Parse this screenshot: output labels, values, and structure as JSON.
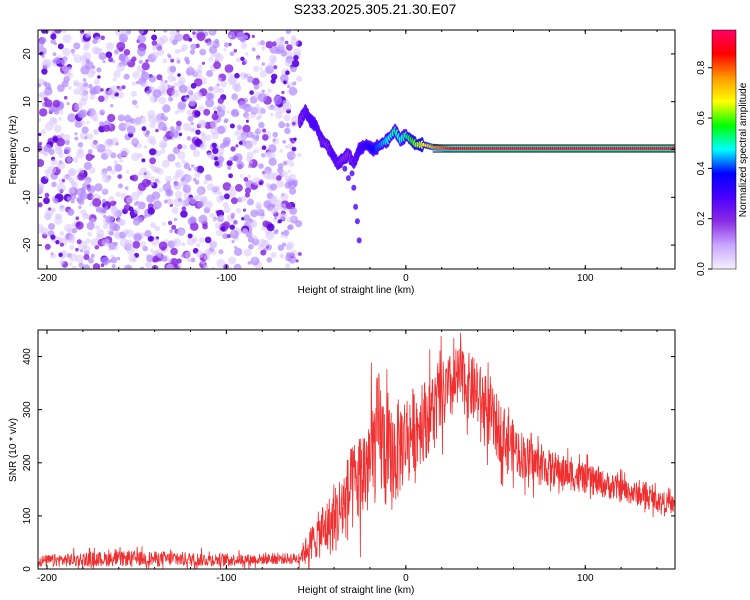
{
  "title": "S233.2025.305.21.30.E07",
  "colors": {
    "snr_line": "#f03030",
    "spectral_background": "#ffffff",
    "colorbar": [
      "#f5f0ff",
      "#c8a6ff",
      "#8a2be2",
      "#4b00ff",
      "#0000ff",
      "#00ffff",
      "#00ff00",
      "#ffff00",
      "#ff9900",
      "#ff0000",
      "#ff0066"
    ]
  },
  "chart_data": [
    {
      "type": "heatmap",
      "name": "spectrogram",
      "title": "S233.2025.305.21.30.E07",
      "xlabel": "Height of straight line (km)",
      "ylabel": "Frequency (Hz)",
      "xlim": [
        -205,
        150
      ],
      "ylim": [
        -25,
        25
      ],
      "xticks": [
        -200,
        -100,
        0,
        100
      ],
      "yticks": [
        -20,
        -10,
        0,
        10,
        20
      ],
      "noise_region": {
        "x_range": [
          -205,
          -59
        ],
        "y_range": [
          -25,
          25
        ]
      },
      "signal_ridge": {
        "x": [
          -59,
          -56,
          -53,
          -50,
          -47,
          -44,
          -41,
          -38,
          -35,
          -32,
          -29,
          -26,
          -22,
          -18,
          -14,
          -10,
          -6,
          -3,
          0,
          3,
          6,
          10,
          15,
          25,
          40,
          60,
          80,
          100,
          120,
          150
        ],
        "y": [
          6,
          8,
          6,
          5,
          2,
          1,
          -1,
          -3,
          -2,
          -1,
          -3,
          0,
          1,
          0,
          1,
          2,
          4,
          2,
          3,
          2,
          1,
          1,
          0.5,
          0.2,
          0.2,
          0.2,
          0.2,
          0.2,
          0.2,
          0.2
        ],
        "amplitude": [
          0.2,
          0.25,
          0.3,
          0.3,
          0.25,
          0.2,
          0.3,
          0.25,
          0.2,
          0.2,
          0.25,
          0.3,
          0.35,
          0.4,
          0.45,
          0.5,
          0.55,
          0.5,
          0.55,
          0.6,
          0.65,
          0.7,
          0.8,
          0.9,
          0.95,
          0.95,
          0.95,
          0.95,
          0.95,
          0.95
        ]
      },
      "colorbar": {
        "label": "Normalized spectral amplitude",
        "range": [
          0,
          0.95
        ],
        "ticks": [
          0.0,
          0.2,
          0.4,
          0.6,
          0.8
        ]
      }
    },
    {
      "type": "line",
      "name": "snr",
      "xlabel": "Height of straight line (km)",
      "ylabel": "SNR (10 * v/v)",
      "xlim": [
        -205,
        150
      ],
      "ylim": [
        0,
        450
      ],
      "xticks": [
        -200,
        -100,
        0,
        100
      ],
      "yticks": [
        0,
        100,
        200,
        300,
        400
      ],
      "envelope": {
        "x": [
          -205,
          -180,
          -150,
          -120,
          -90,
          -60,
          -50,
          -40,
          -30,
          -20,
          -15,
          -10,
          -5,
          0,
          10,
          20,
          30,
          40,
          50,
          60,
          70,
          80,
          100,
          120,
          150
        ],
        "mean": [
          15,
          18,
          20,
          18,
          18,
          20,
          60,
          90,
          150,
          200,
          260,
          200,
          220,
          250,
          280,
          320,
          360,
          330,
          270,
          230,
          200,
          190,
          170,
          150,
          120
        ],
        "spread": [
          15,
          20,
          20,
          20,
          15,
          15,
          60,
          90,
          120,
          150,
          170,
          150,
          140,
          120,
          110,
          100,
          90,
          90,
          90,
          70,
          60,
          50,
          40,
          35,
          25
        ]
      }
    }
  ]
}
